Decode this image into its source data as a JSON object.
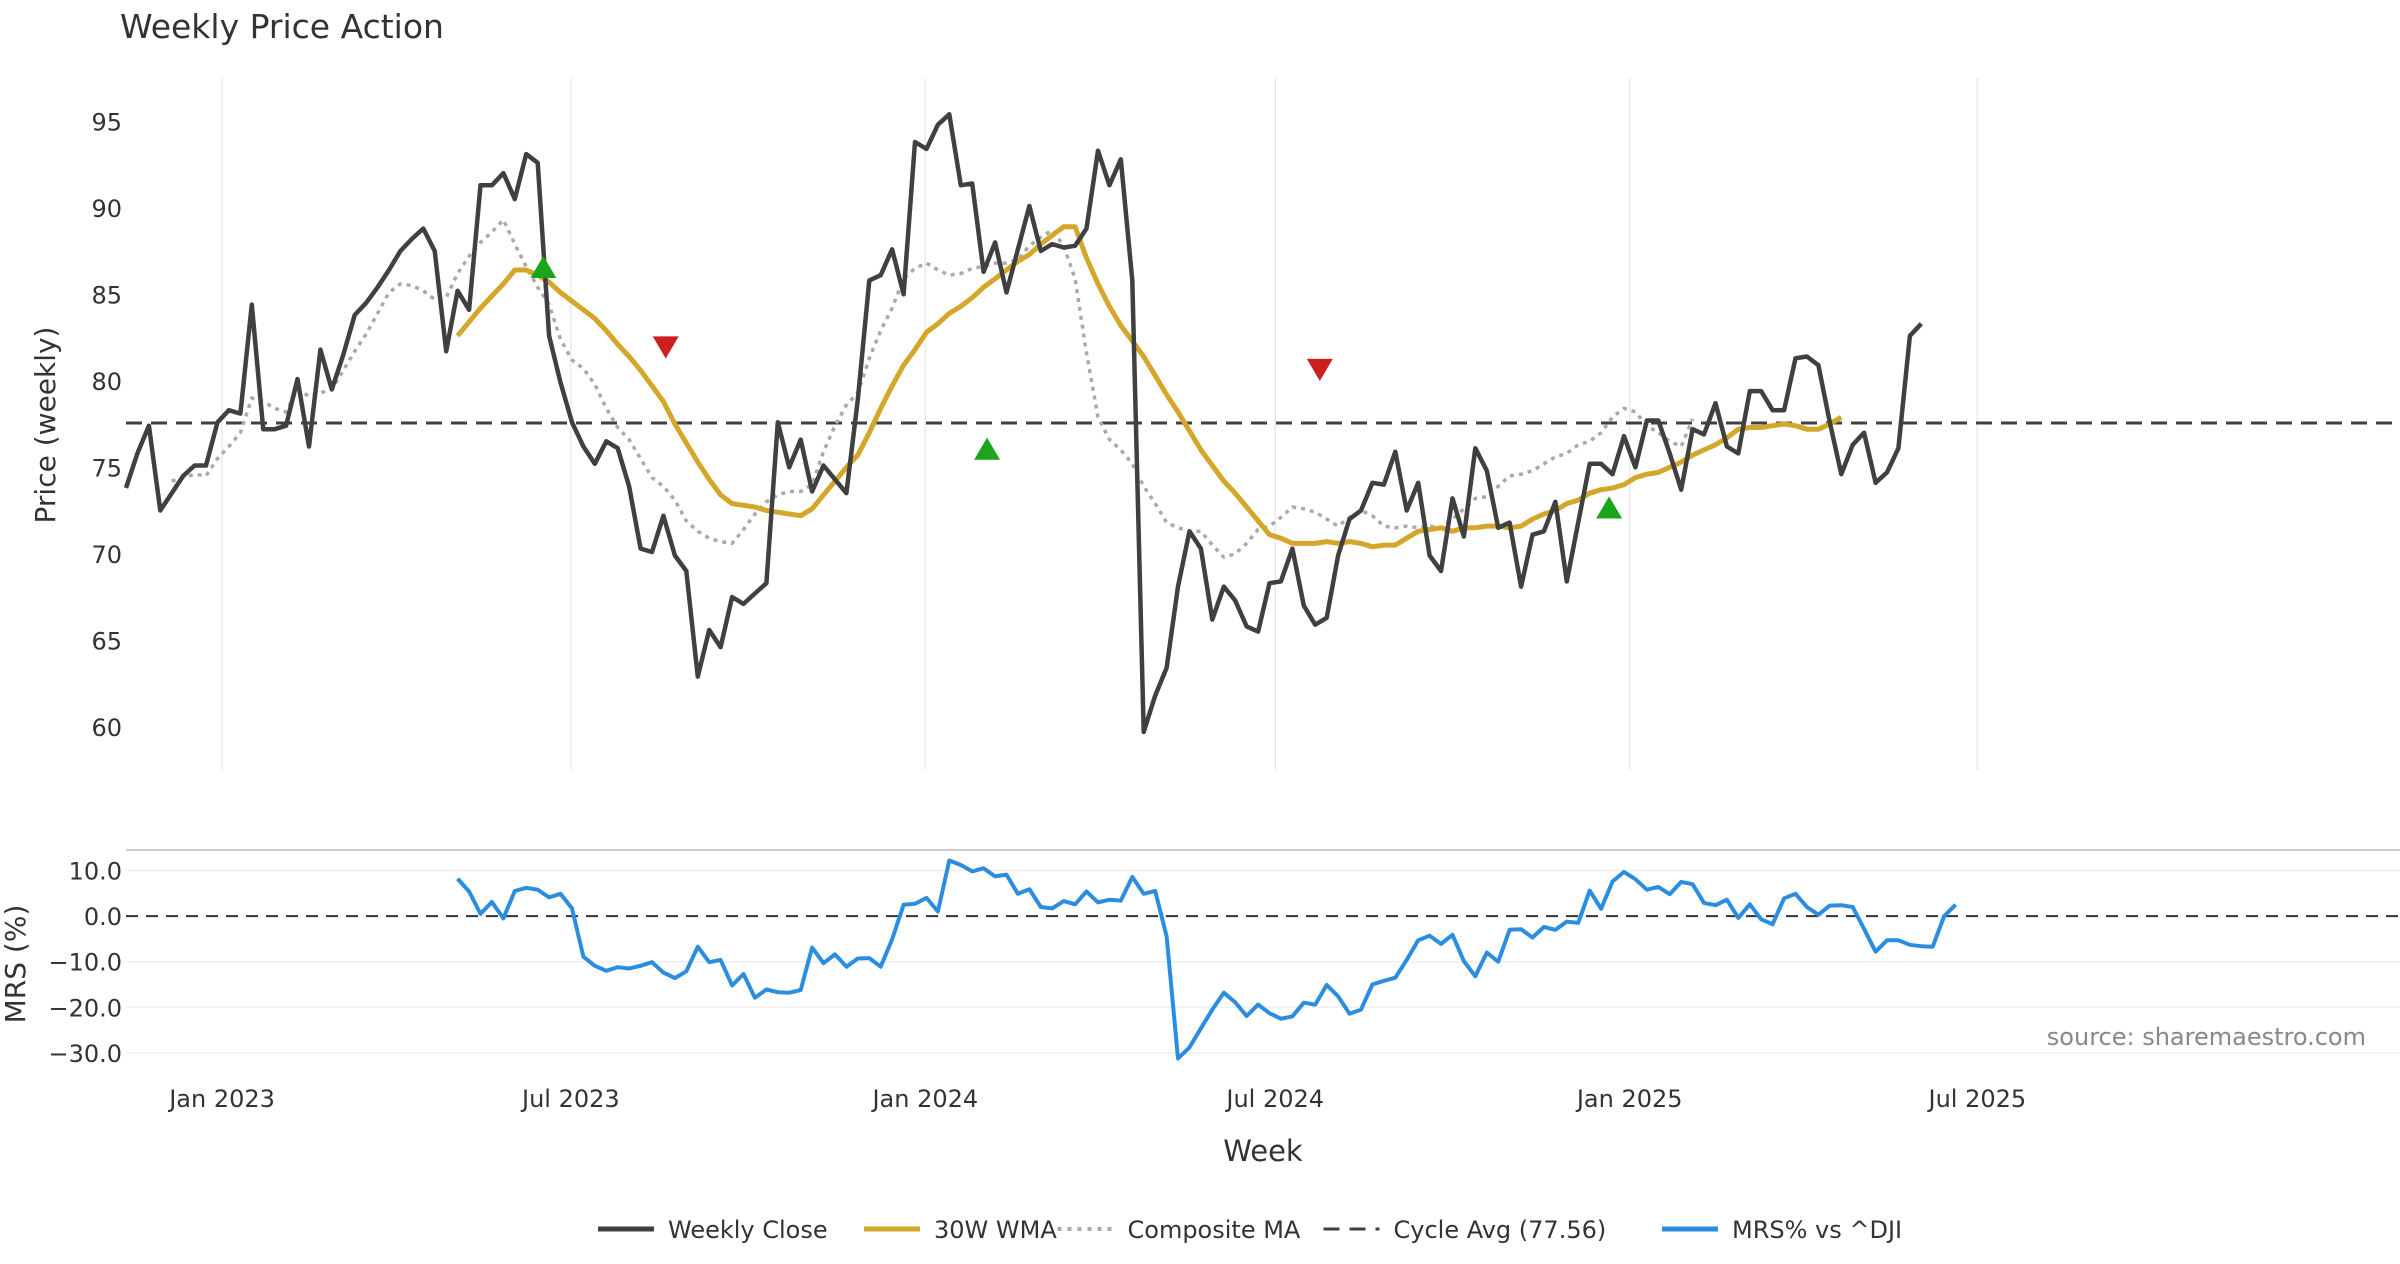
{
  "chart_data": [
    {
      "type": "line",
      "title": "Weekly Price Action",
      "ylabel": "Price (weekly)",
      "xlabel": "",
      "ylim": [
        57.5,
        97.5
      ],
      "yticks": [
        60,
        65,
        70,
        75,
        80,
        85,
        90,
        95
      ],
      "xlim": [
        0,
        194
      ],
      "x_tick_labels": [
        "Jan 2023",
        "Jul 2023",
        "Jan 2024",
        "Jul 2024",
        "Jan 2025",
        "Jul 2025"
      ],
      "x_tick_weeks": [
        8.4,
        38.9,
        69.9,
        100.5,
        131.5,
        161.9
      ],
      "series": [
        {
          "name": "Weekly Close",
          "color": "#404040",
          "values": [
            73.8,
            75.8,
            77.4,
            72.5,
            73.5,
            74.5,
            75.1,
            75.1,
            77.6,
            78.3,
            78.1,
            84.4,
            77.2,
            77.2,
            77.4,
            80.1,
            76.2,
            81.8,
            79.5,
            81.5,
            83.8,
            84.5,
            85.4,
            86.4,
            87.5,
            88.2,
            88.8,
            87.5,
            81.7,
            85.2,
            84.1,
            91.3,
            91.3,
            92.0,
            90.5,
            93.1,
            92.6,
            82.6,
            79.9,
            77.6,
            76.2,
            75.2,
            76.5,
            76.1,
            73.9,
            70.3,
            70.1,
            72.2,
            69.9,
            69.0,
            62.9,
            65.6,
            64.6,
            67.5,
            67.1,
            67.7,
            68.3,
            77.6,
            75.0,
            76.6,
            73.6,
            75.1,
            74.3,
            73.5,
            78.9,
            85.8,
            86.1,
            87.6,
            85.0,
            93.8,
            93.4,
            94.8,
            95.4,
            91.3,
            91.4,
            86.3,
            88.0,
            85.1,
            87.6,
            90.1,
            87.5,
            87.9,
            87.7,
            87.8,
            88.8,
            93.3,
            91.3,
            92.8,
            85.8,
            59.7,
            61.8,
            63.4,
            68.1,
            71.3,
            70.3,
            66.2,
            68.1,
            67.3,
            65.8,
            65.5,
            68.3,
            68.4,
            70.3,
            67.0,
            65.9,
            66.3,
            69.9,
            72.0,
            72.5,
            74.1,
            74.0,
            75.9,
            72.5,
            74.1,
            69.9,
            69.0,
            73.2,
            71.0,
            76.1,
            74.8,
            71.5,
            71.8,
            68.1,
            71.1,
            71.3,
            73.0,
            68.4,
            71.8,
            75.2,
            75.2,
            74.6,
            76.8,
            75.0,
            77.7,
            77.7,
            75.8,
            73.7,
            77.2,
            76.9,
            78.7,
            76.2,
            75.8,
            79.4,
            79.4,
            78.3,
            78.3,
            81.3,
            81.4,
            80.9,
            77.6,
            74.6,
            76.3,
            77.0,
            74.1,
            74.7,
            76.1,
            82.6,
            83.3
          ]
        },
        {
          "name": "30W WMA",
          "color": "#d4a62a",
          "start_week": 29,
          "values": [
            82.6,
            83.4,
            84.2,
            84.9,
            85.6,
            86.4,
            86.4,
            86.1,
            85.7,
            85.1,
            84.6,
            84.1,
            83.6,
            82.9,
            82.1,
            81.4,
            80.6,
            79.7,
            78.8,
            77.5,
            76.4,
            75.3,
            74.3,
            73.4,
            72.9,
            72.8,
            72.7,
            72.5,
            72.4,
            72.3,
            72.2,
            72.6,
            73.4,
            74.2,
            75.0,
            75.7,
            77.0,
            78.4,
            79.7,
            80.9,
            81.8,
            82.8,
            83.3,
            83.9,
            84.3,
            84.8,
            85.4,
            85.9,
            86.4,
            86.9,
            87.3,
            87.9,
            88.4,
            88.9,
            88.9,
            87.1,
            85.6,
            84.3,
            83.2,
            82.3,
            81.4,
            80.3,
            79.2,
            78.2,
            77.1,
            76.0,
            75.1,
            74.2,
            73.5,
            72.7,
            71.9,
            71.1,
            70.9,
            70.6,
            70.6,
            70.6,
            70.7,
            70.6,
            70.7,
            70.6,
            70.4,
            70.5,
            70.5,
            70.9,
            71.3,
            71.4,
            71.5,
            71.3,
            71.5,
            71.5,
            71.6,
            71.6,
            71.5,
            71.6,
            72.0,
            72.3,
            72.5,
            72.9,
            73.1,
            73.5,
            73.7,
            73.8,
            74.0,
            74.4,
            74.6,
            74.7,
            75.0,
            75.3,
            75.7,
            76.0,
            76.3,
            76.7,
            77.2,
            77.3,
            77.3,
            77.4,
            77.5,
            77.4,
            77.2,
            77.2,
            77.5,
            77.9
          ]
        },
        {
          "name": "Composite MA",
          "color": "#aaaaaa",
          "start_week": 4,
          "values": [
            74.2,
            74.4,
            74.6,
            74.5,
            75.5,
            76.2,
            77.0,
            79.0,
            78.8,
            78.4,
            78.2,
            79.5,
            79.1,
            79.3,
            79.5,
            80.6,
            81.7,
            82.7,
            83.9,
            85.1,
            85.6,
            85.5,
            85.2,
            84.7,
            84.8,
            86.2,
            87.2,
            88.0,
            88.6,
            89.3,
            87.9,
            86.6,
            85.4,
            84.4,
            82.4,
            81.2,
            80.7,
            79.8,
            78.4,
            77.3,
            76.6,
            75.5,
            74.4,
            73.9,
            73.1,
            71.9,
            71.3,
            70.9,
            70.7,
            70.6,
            71.4,
            72.3,
            73.0,
            73.4,
            73.6,
            73.6,
            74.0,
            75.9,
            77.4,
            78.6,
            79.3,
            81.3,
            82.9,
            84.2,
            85.9,
            86.5,
            86.8,
            86.4,
            86.1,
            86.2,
            86.5,
            86.6,
            86.8,
            86.8,
            87.0,
            87.8,
            88.3,
            88.7,
            87.8,
            85.9,
            81.6,
            77.9,
            76.6,
            76.0,
            75.2,
            73.9,
            72.9,
            71.8,
            71.5,
            71.3,
            71.3,
            70.5,
            69.8,
            70.0,
            70.6,
            71.4,
            71.6,
            72.1,
            72.7,
            72.6,
            72.4,
            72.0,
            71.6,
            72.1,
            72.5,
            72.2,
            71.6,
            71.5,
            71.6,
            71.5,
            71.6,
            71.5,
            72.0,
            72.6,
            73.2,
            73.3,
            73.9,
            74.5,
            74.6,
            74.8,
            75.2,
            75.6,
            75.8,
            76.3,
            76.5,
            77.0,
            77.9,
            78.4,
            78.2,
            77.4,
            77.0,
            76.5,
            76.2,
            77.8
          ]
        },
        {
          "name": "Cycle Avg (77.56)",
          "color": "#404040",
          "value": 77.56
        }
      ],
      "markers": [
        {
          "type": "buy",
          "week": 36.5,
          "value": 86.5,
          "color": "#1aa51a"
        },
        {
          "type": "sell",
          "week": 47.2,
          "value": 82.0,
          "color": "#cc1f1f"
        },
        {
          "type": "buy",
          "week": 75.3,
          "value": 76.0,
          "color": "#1aa51a"
        },
        {
          "type": "sell",
          "week": 104.4,
          "value": 80.7,
          "color": "#cc1f1f"
        },
        {
          "type": "buy",
          "week": 129.7,
          "value": 72.6,
          "color": "#1aa51a"
        }
      ]
    },
    {
      "type": "line",
      "title": "",
      "ylabel": "MRS (%)",
      "xlabel": "Week",
      "ylim": [
        -32,
        14.5
      ],
      "yticks": [
        10.0,
        0.0,
        -10.0,
        -20.0,
        -30.0
      ],
      "ytick_labels": [
        "10.0",
        "0.0",
        "−10.0",
        "−20.0",
        "−30.0"
      ],
      "x_tick_labels": [
        "Jan 2023",
        "Jul 2023",
        "Jan 2024",
        "Jul 2024",
        "Jan 2025",
        "Jul 2025"
      ],
      "series": [
        {
          "name": "MRS% vs ^DJI",
          "color": "#2b8de0",
          "start_week": 29,
          "values": [
            8.2,
            5.4,
            0.5,
            3.1,
            -0.5,
            5.5,
            6.2,
            5.8,
            4.1,
            4.9,
            1.7,
            -8.9,
            -10.9,
            -12.0,
            -11.2,
            -11.5,
            -10.9,
            -10.1,
            -12.4,
            -13.6,
            -12.1,
            -6.7,
            -10.1,
            -9.6,
            -15.2,
            -12.7,
            -17.9,
            -16.1,
            -16.7,
            -16.8,
            -16.2,
            -6.9,
            -10.3,
            -8.4,
            -11.1,
            -9.3,
            -9.2,
            -11.1,
            -5.1,
            2.5,
            2.7,
            4.0,
            1.0,
            12.2,
            11.2,
            9.8,
            10.5,
            8.7,
            9.1,
            4.9,
            5.9,
            2.0,
            1.7,
            3.3,
            2.6,
            5.4,
            3.0,
            3.6,
            3.4,
            8.6,
            4.9,
            5.5,
            -4.4,
            -31.2,
            -28.8,
            -24.6,
            -20.5,
            -16.8,
            -18.9,
            -21.9,
            -19.4,
            -21.3,
            -22.5,
            -22.0,
            -19.0,
            -19.4,
            -15.1,
            -17.6,
            -21.4,
            -20.5,
            -15.0,
            -14.2,
            -13.5,
            -9.6,
            -5.3,
            -4.3,
            -6.1,
            -4.1,
            -9.9,
            -13.2,
            -8.0,
            -10.0,
            -3.0,
            -2.9,
            -4.7,
            -2.4,
            -3.0,
            -1.2,
            -1.5,
            5.6,
            1.6,
            7.6,
            9.7,
            8.1,
            5.8,
            6.4,
            4.8,
            7.5,
            7.0,
            2.9,
            2.4,
            3.6,
            -0.4,
            2.6,
            -0.7,
            -1.8,
            3.9,
            4.9,
            2.0,
            0.3,
            2.3,
            2.4,
            2.0,
            -2.8,
            -7.8,
            -5.3,
            -5.3,
            -6.3,
            -6.6,
            -6.7,
            0.0,
            2.5
          ]
        }
      ],
      "zero_line": 0.0
    }
  ],
  "annotation": "source: sharemaestro.com",
  "legend": [
    {
      "label": "Weekly Close",
      "style": "solid",
      "color": "#404040"
    },
    {
      "label": "30W WMA",
      "style": "solid",
      "color": "#d4a62a"
    },
    {
      "label": "Composite MA",
      "style": "dotted",
      "color": "#aaaaaa"
    },
    {
      "label": "Cycle Avg (77.56)",
      "style": "dashed",
      "color": "#404040"
    },
    {
      "label": "MRS% vs ^DJI",
      "style": "solid",
      "color": "#2b8de0"
    }
  ]
}
